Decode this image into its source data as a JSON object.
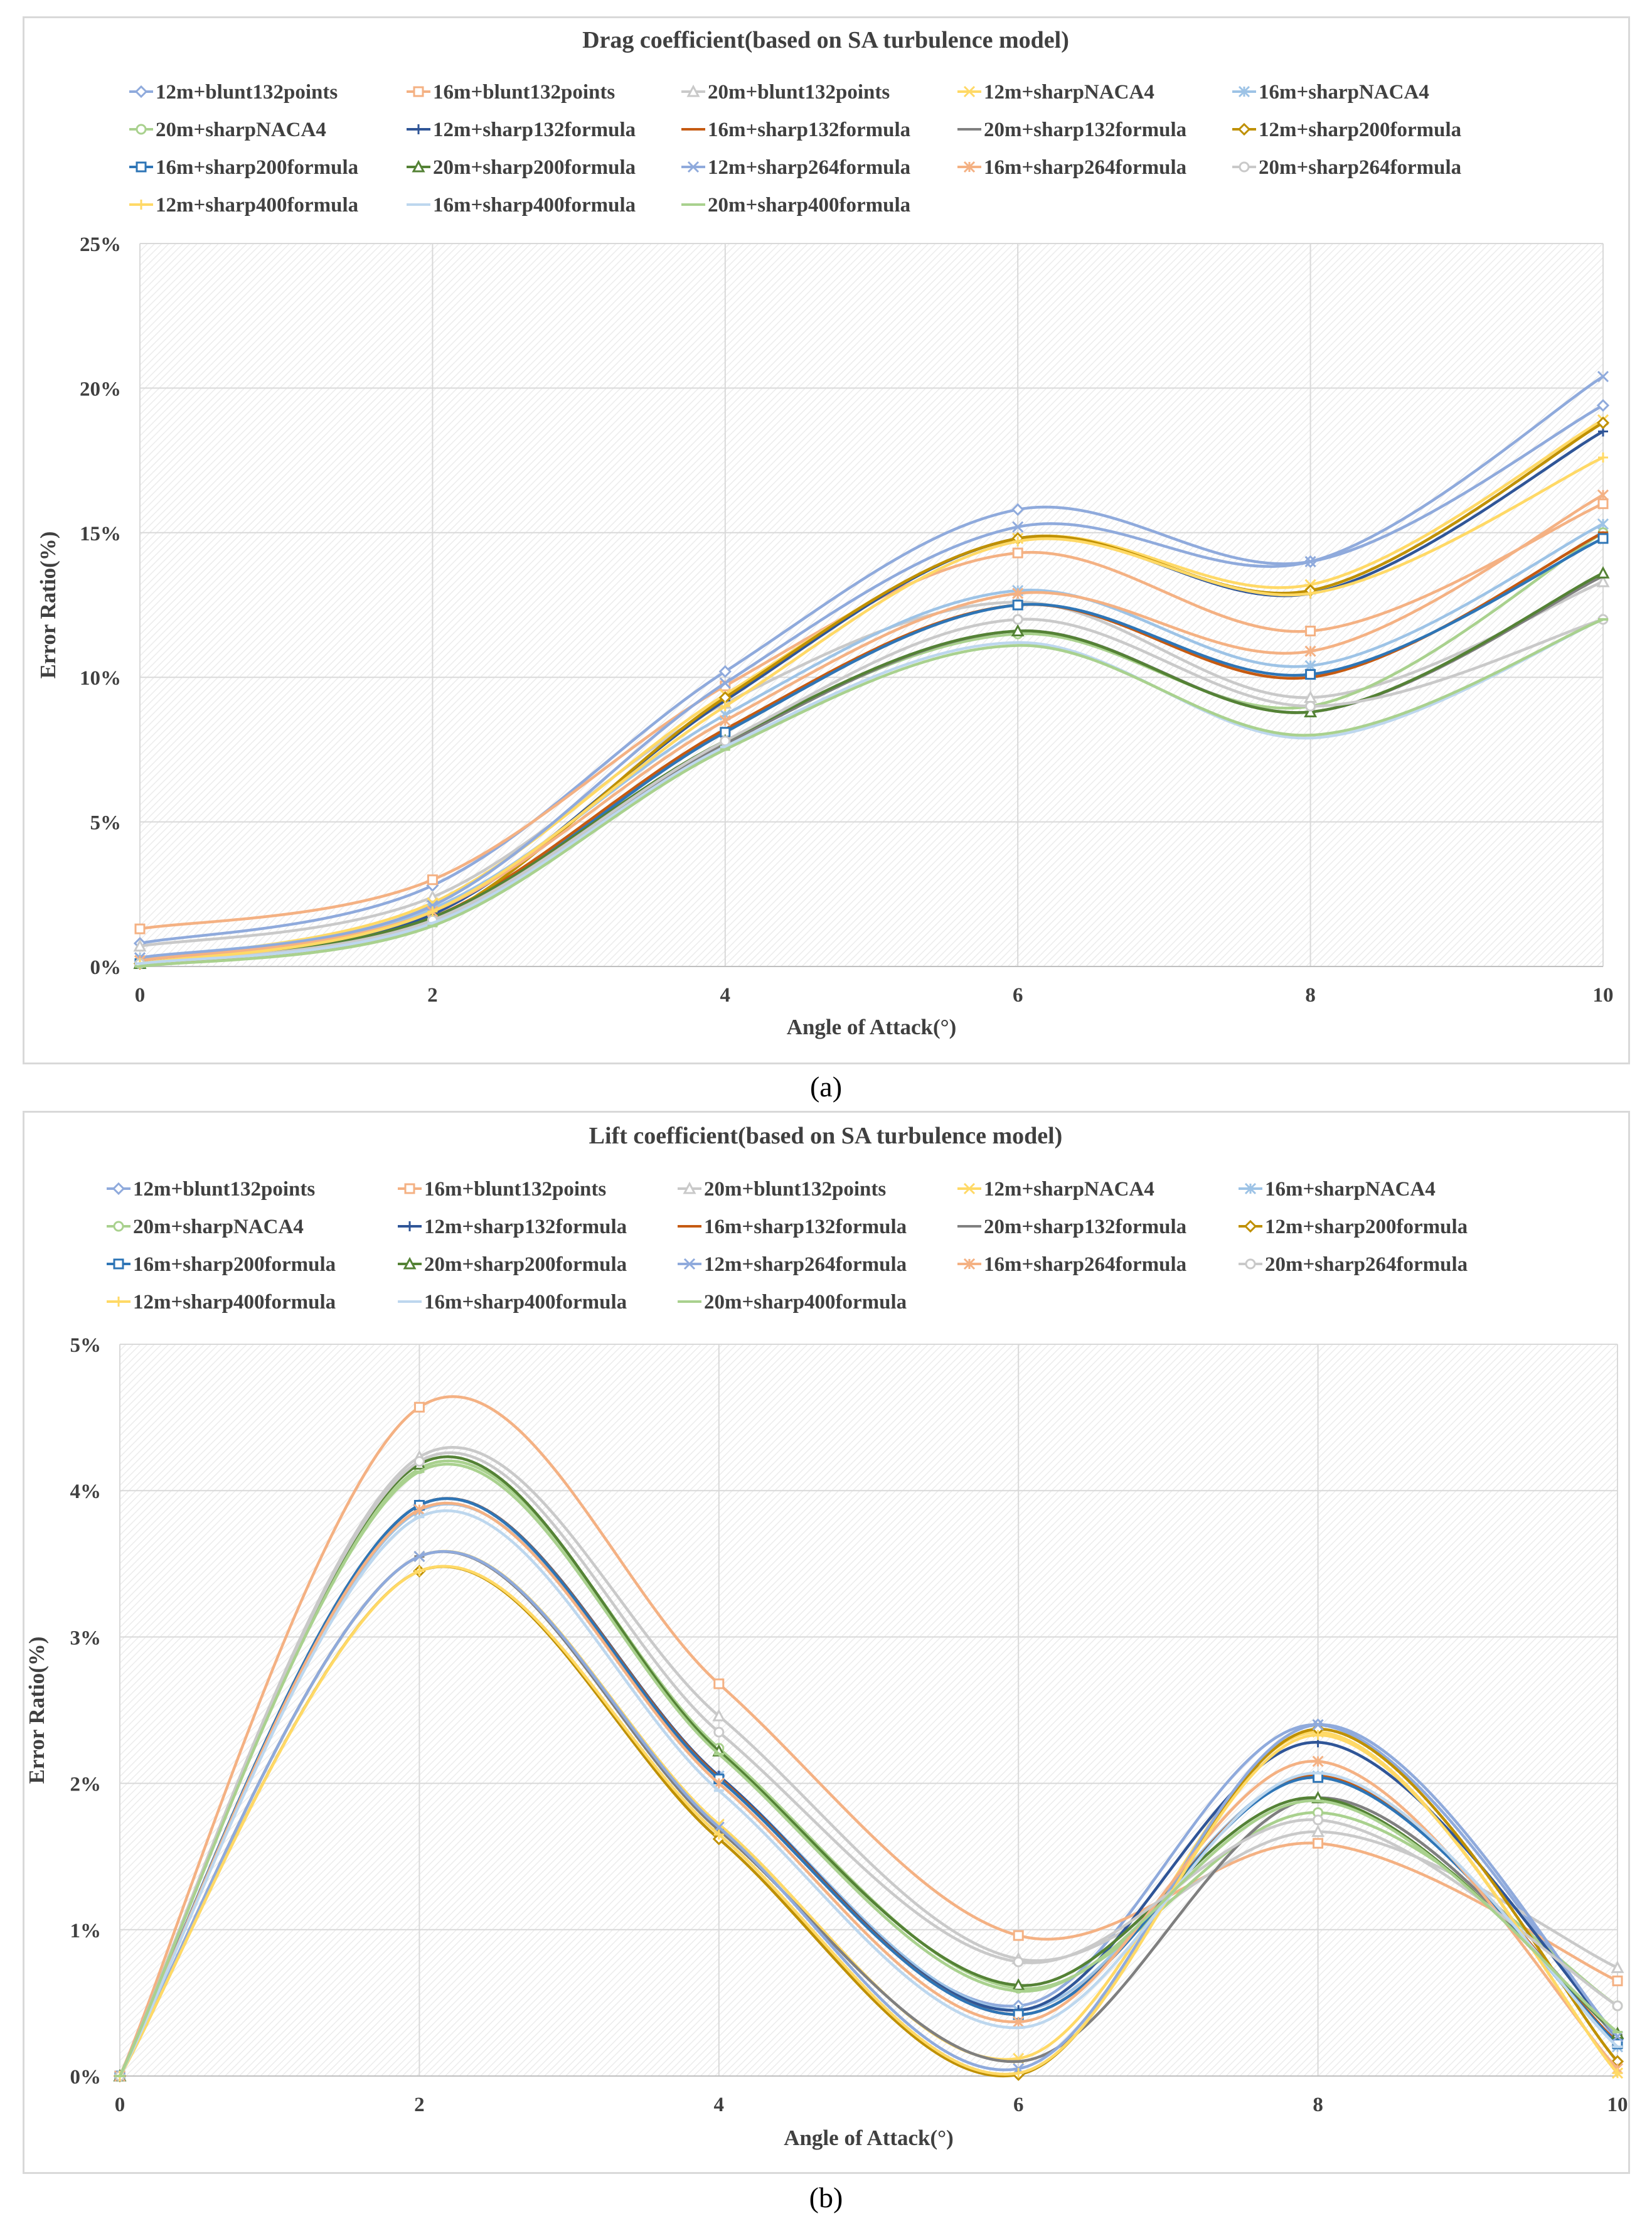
{
  "figure": {
    "caption_a": "(a)",
    "caption_b": "(b)"
  },
  "series_styles": [
    {
      "name": "12m+blunt132points",
      "color": "#8faadc",
      "marker": "diamond"
    },
    {
      "name": "16m+blunt132points",
      "color": "#f4b183",
      "marker": "square"
    },
    {
      "name": "20m+blunt132points",
      "color": "#c9c9c9",
      "marker": "triangle"
    },
    {
      "name": "12m+sharpNACA4",
      "color": "#ffd966",
      "marker": "x"
    },
    {
      "name": "16m+sharpNACA4",
      "color": "#9dc3e6",
      "marker": "star"
    },
    {
      "name": "20m+sharpNACA4",
      "color": "#a9d18e",
      "marker": "circle"
    },
    {
      "name": "12m+sharp132formula",
      "color": "#2f5597",
      "marker": "plus"
    },
    {
      "name": "16m+sharp132formula",
      "color": "#c55a11",
      "marker": "dash"
    },
    {
      "name": "20m+sharp132formula",
      "color": "#7f7f7f",
      "marker": "dash"
    },
    {
      "name": "12m+sharp200formula",
      "color": "#bf9000",
      "marker": "diamond"
    },
    {
      "name": "16m+sharp200formula",
      "color": "#2e75b6",
      "marker": "square"
    },
    {
      "name": "20m+sharp200formula",
      "color": "#548235",
      "marker": "triangle"
    },
    {
      "name": "12m+sharp264formula",
      "color": "#8faadc",
      "marker": "x"
    },
    {
      "name": "16m+sharp264formula",
      "color": "#f4b183",
      "marker": "star"
    },
    {
      "name": "20m+sharp264formula",
      "color": "#c9c9c9",
      "marker": "circle"
    },
    {
      "name": "12m+sharp400formula",
      "color": "#ffd966",
      "marker": "plus"
    },
    {
      "name": "16m+sharp400formula",
      "color": "#bdd7ee",
      "marker": "dash"
    },
    {
      "name": "20m+sharp400formula",
      "color": "#a9d18e",
      "marker": "dash"
    }
  ],
  "chart_data": [
    {
      "type": "line",
      "title": "Drag coefficient(based on SA turbulence model)",
      "xlabel": "Angle of Attack(°)",
      "ylabel": "Error Ratio(%)",
      "x": [
        0,
        2,
        4,
        6,
        8,
        10
      ],
      "xlim": [
        0,
        10
      ],
      "ylim": [
        0,
        25
      ],
      "yticks": [
        0,
        5,
        10,
        15,
        20,
        25
      ],
      "ytick_labels": [
        "0%",
        "5%",
        "10%",
        "15%",
        "20%",
        "25%"
      ],
      "xtick_labels": [
        "0",
        "2",
        "4",
        "6",
        "8",
        "10"
      ],
      "legend_position": "top",
      "series": [
        {
          "name": "12m+blunt132points",
          "values": [
            0.8,
            2.8,
            10.2,
            15.8,
            14.0,
            19.4
          ]
        },
        {
          "name": "16m+blunt132points",
          "values": [
            1.3,
            3.0,
            9.7,
            14.3,
            11.6,
            16.0
          ]
        },
        {
          "name": "20m+blunt132points",
          "values": [
            0.7,
            2.4,
            9.1,
            12.6,
            9.3,
            13.3
          ]
        },
        {
          "name": "12m+sharpNACA4",
          "values": [
            0.2,
            2.2,
            9.4,
            14.8,
            13.2,
            18.9
          ]
        },
        {
          "name": "16m+sharpNACA4",
          "values": [
            0.3,
            2.0,
            8.7,
            13.0,
            10.4,
            15.3
          ]
        },
        {
          "name": "20m+sharpNACA4",
          "values": [
            0.1,
            1.6,
            7.8,
            11.5,
            9.0,
            15.0
          ]
        },
        {
          "name": "12m+sharp132formula",
          "values": [
            0.2,
            1.8,
            9.2,
            14.8,
            12.9,
            18.5
          ]
        },
        {
          "name": "16m+sharp132formula",
          "values": [
            0.1,
            1.7,
            8.2,
            12.5,
            10.0,
            15.0
          ]
        },
        {
          "name": "20m+sharp132formula",
          "values": [
            0.1,
            1.5,
            7.7,
            11.6,
            8.8,
            13.5
          ]
        },
        {
          "name": "12m+sharp200formula",
          "values": [
            0.1,
            1.6,
            9.3,
            14.8,
            13.0,
            18.8
          ]
        },
        {
          "name": "16m+sharp200formula",
          "values": [
            0.1,
            1.6,
            8.1,
            12.5,
            10.1,
            14.8
          ]
        },
        {
          "name": "20m+sharp200formula",
          "values": [
            0.1,
            1.7,
            7.8,
            11.6,
            8.8,
            13.6
          ]
        },
        {
          "name": "12m+sharp264formula",
          "values": [
            0.3,
            2.1,
            9.8,
            15.2,
            14.0,
            20.4
          ]
        },
        {
          "name": "16m+sharp264formula",
          "values": [
            0.2,
            1.9,
            8.5,
            12.9,
            10.9,
            16.3
          ]
        },
        {
          "name": "20m+sharp264formula",
          "values": [
            0.1,
            1.6,
            7.8,
            12.0,
            9.0,
            12.0
          ]
        },
        {
          "name": "12m+sharp400formula",
          "values": [
            0.1,
            1.9,
            9.0,
            14.7,
            12.9,
            17.6
          ]
        },
        {
          "name": "16m+sharp400formula",
          "values": [
            0.1,
            1.5,
            7.6,
            11.2,
            7.9,
            12.0
          ]
        },
        {
          "name": "20m+sharp400formula",
          "values": [
            0.0,
            1.4,
            7.5,
            11.1,
            8.0,
            12.0
          ]
        }
      ]
    },
    {
      "type": "line",
      "title": "Lift coefficient(based on SA turbulence model)",
      "xlabel": "Angle of Attack(°)",
      "ylabel": "Error Ratio(%)",
      "x": [
        0,
        2,
        4,
        6,
        8,
        10
      ],
      "xlim": [
        0,
        10
      ],
      "ylim": [
        0,
        5
      ],
      "yticks": [
        0,
        1,
        2,
        3,
        4,
        5
      ],
      "ytick_labels": [
        "0%",
        "1%",
        "2%",
        "3%",
        "4%",
        "5%"
      ],
      "xtick_labels": [
        "0",
        "2",
        "4",
        "6",
        "8",
        "10"
      ],
      "legend_position": "top",
      "series": [
        {
          "name": "12m+blunt132points",
          "values": [
            0,
            3.9,
            2.05,
            0.48,
            2.4,
            0.25
          ]
        },
        {
          "name": "16m+blunt132points",
          "values": [
            0,
            4.57,
            2.68,
            0.96,
            1.59,
            0.65
          ]
        },
        {
          "name": "20m+blunt132points",
          "values": [
            0,
            4.23,
            2.46,
            0.8,
            1.67,
            0.74
          ]
        },
        {
          "name": "12m+sharpNACA4",
          "values": [
            0,
            3.55,
            1.72,
            0.12,
            2.35,
            0.02
          ]
        },
        {
          "name": "16m+sharpNACA4",
          "values": [
            0,
            3.86,
            2.05,
            0.45,
            2.05,
            0.2
          ]
        },
        {
          "name": "20m+sharpNACA4",
          "values": [
            0,
            4.15,
            2.24,
            0.6,
            1.8,
            0.48
          ]
        },
        {
          "name": "12m+sharp132formula",
          "values": [
            0,
            3.9,
            2.05,
            0.45,
            2.28,
            0.27
          ]
        },
        {
          "name": "16m+sharp132formula",
          "values": [
            0,
            3.9,
            2.04,
            0.42,
            2.05,
            0.23
          ]
        },
        {
          "name": "20m+sharp132formula",
          "values": [
            0,
            3.55,
            1.68,
            0.1,
            1.9,
            0.28
          ]
        },
        {
          "name": "12m+sharp200formula",
          "values": [
            0,
            3.45,
            1.62,
            0.01,
            2.37,
            0.1
          ]
        },
        {
          "name": "16m+sharp200formula",
          "values": [
            0,
            3.9,
            2.03,
            0.42,
            2.04,
            0.22
          ]
        },
        {
          "name": "20m+sharp200formula",
          "values": [
            0,
            4.18,
            2.22,
            0.62,
            1.9,
            0.29
          ]
        },
        {
          "name": "12m+sharp264formula",
          "values": [
            0,
            3.55,
            1.7,
            0.05,
            2.4,
            0.27
          ]
        },
        {
          "name": "16m+sharp264formula",
          "values": [
            0,
            3.87,
            2.0,
            0.37,
            2.15,
            0.05
          ]
        },
        {
          "name": "20m+sharp264formula",
          "values": [
            0,
            4.2,
            2.35,
            0.78,
            1.75,
            0.48
          ]
        },
        {
          "name": "12m+sharp400formula",
          "values": [
            0,
            3.45,
            1.65,
            0.02,
            2.33,
            0.02
          ]
        },
        {
          "name": "16m+sharp400formula",
          "values": [
            0,
            3.82,
            1.95,
            0.33,
            2.07,
            0.2
          ]
        },
        {
          "name": "20m+sharp400formula",
          "values": [
            0,
            4.13,
            2.2,
            0.58,
            1.88,
            0.3
          ]
        }
      ]
    }
  ]
}
